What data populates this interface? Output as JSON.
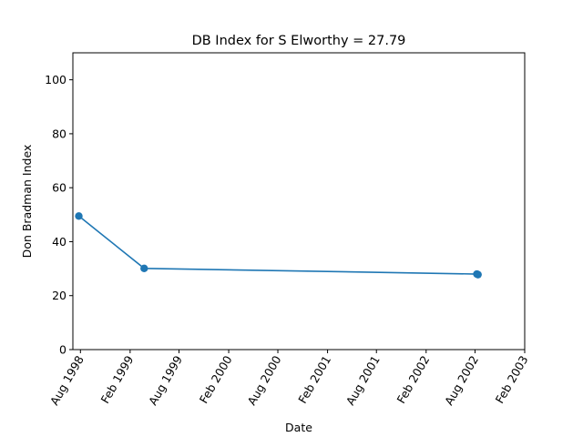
{
  "chart_data": {
    "type": "line",
    "title": "DB Index for S Elworthy = 27.79",
    "xlabel": "Date",
    "ylabel": "Don Bradman Index",
    "ylim": [
      0,
      110
    ],
    "yticks": [
      0,
      20,
      40,
      60,
      80,
      100
    ],
    "xticks": [
      {
        "date": "1998-08-01",
        "label": "Aug 1998"
      },
      {
        "date": "1999-02-01",
        "label": "Feb 1999"
      },
      {
        "date": "1999-08-01",
        "label": "Aug 1999"
      },
      {
        "date": "2000-02-01",
        "label": "Feb 2000"
      },
      {
        "date": "2000-08-01",
        "label": "Aug 2000"
      },
      {
        "date": "2001-02-01",
        "label": "Feb 2001"
      },
      {
        "date": "2001-08-01",
        "label": "Aug 2001"
      },
      {
        "date": "2002-02-01",
        "label": "Feb 2002"
      },
      {
        "date": "2002-08-01",
        "label": "Aug 2002"
      },
      {
        "date": "2003-02-01",
        "label": "Feb 2003"
      }
    ],
    "xlim": [
      "1998-07-04",
      "2003-02-01"
    ],
    "series": [
      {
        "color": "#1f77b4",
        "marker": "circle",
        "points": [
          {
            "x": "1998-07-26",
            "y": 49.5
          },
          {
            "x": "1999-03-25",
            "y": 30.1
          },
          {
            "x": "2002-08-08",
            "y": 28.0
          },
          {
            "x": "2002-08-12",
            "y": 27.79
          }
        ]
      }
    ],
    "grid": false,
    "legend": "none"
  }
}
